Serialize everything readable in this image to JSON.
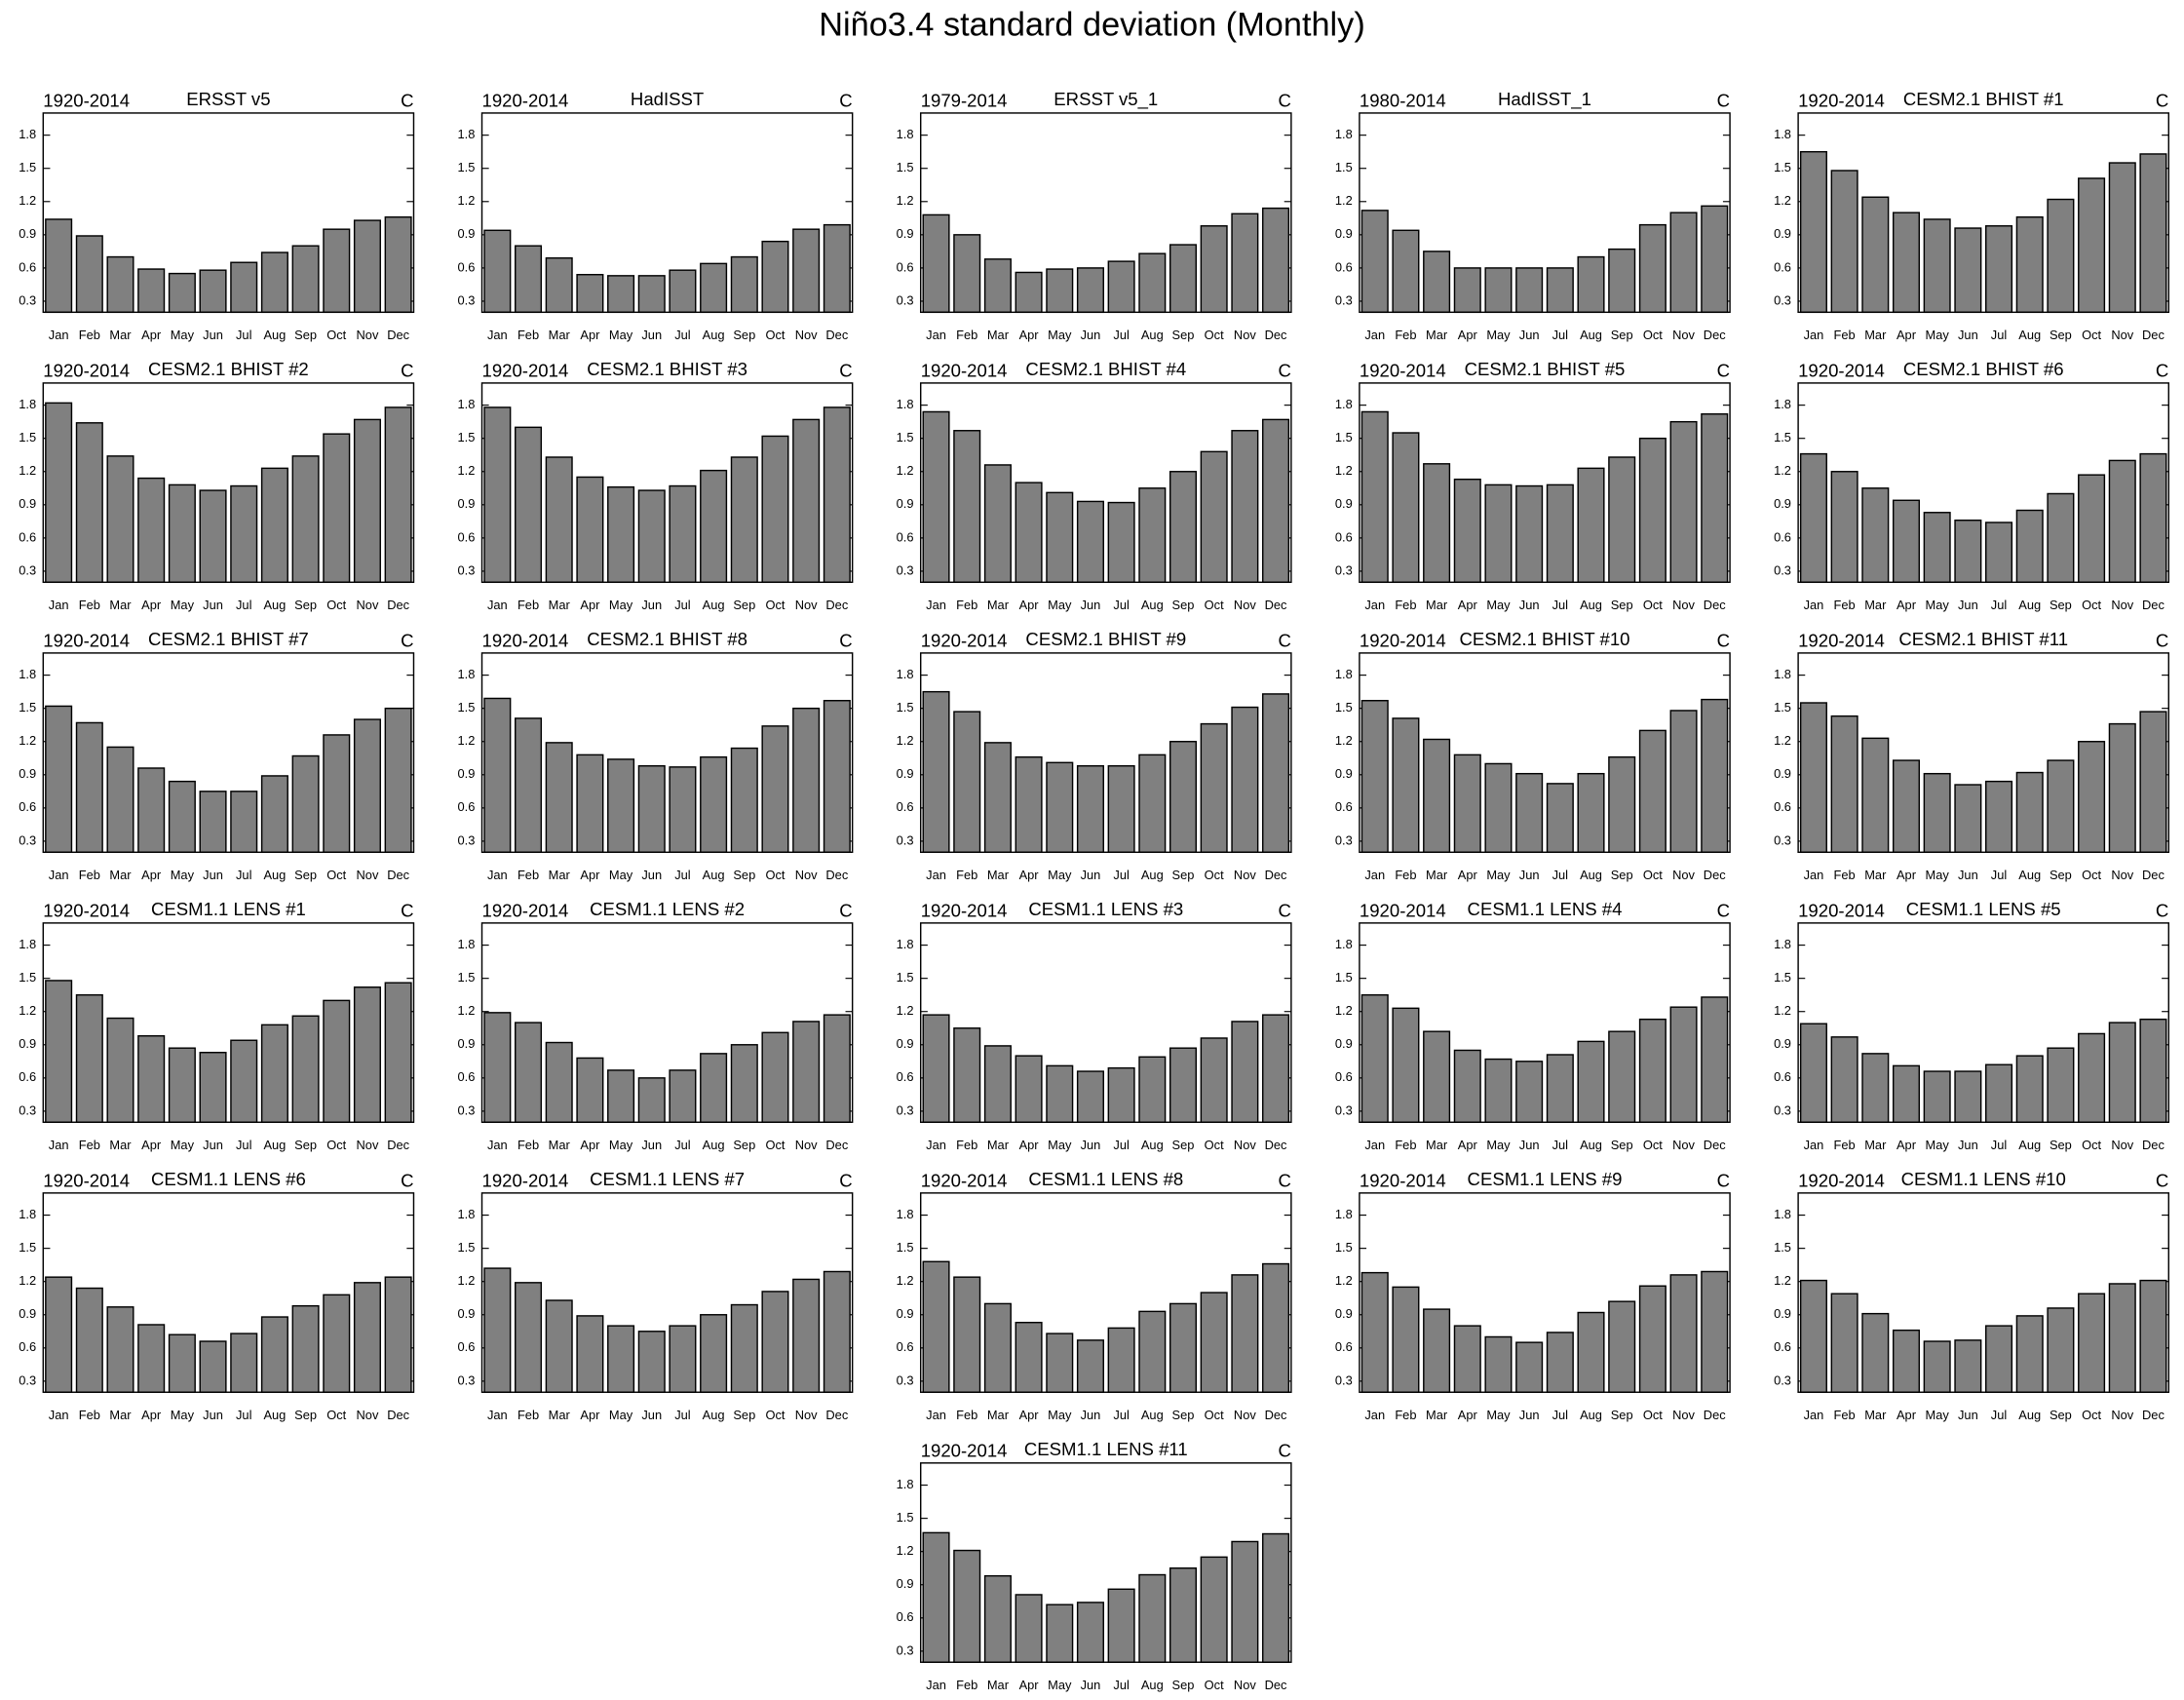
{
  "title": "Niño3.4 standard deviation (Monthly)",
  "chart_data": [
    {
      "type": "bar",
      "title": "ERSST v5",
      "left_label": "1920-2014",
      "right_label": "C",
      "categories": [
        "Jan",
        "Feb",
        "Mar",
        "Apr",
        "May",
        "Jun",
        "Jul",
        "Aug",
        "Sep",
        "Oct",
        "Nov",
        "Dec"
      ],
      "values": [
        1.04,
        0.89,
        0.7,
        0.59,
        0.55,
        0.58,
        0.65,
        0.74,
        0.8,
        0.95,
        1.03,
        1.06
      ],
      "color": "#808080",
      "ylim": [
        0.2,
        2.0
      ],
      "yticks": [
        0.3,
        0.6,
        0.9,
        1.2,
        1.5,
        1.8
      ]
    },
    {
      "type": "bar",
      "title": "HadISST",
      "left_label": "1920-2014",
      "right_label": "C",
      "categories": [
        "Jan",
        "Feb",
        "Mar",
        "Apr",
        "May",
        "Jun",
        "Jul",
        "Aug",
        "Sep",
        "Oct",
        "Nov",
        "Dec"
      ],
      "values": [
        0.94,
        0.8,
        0.69,
        0.54,
        0.53,
        0.53,
        0.58,
        0.64,
        0.7,
        0.84,
        0.95,
        0.99
      ],
      "color": "#808080",
      "ylim": [
        0.2,
        2.0
      ],
      "yticks": [
        0.3,
        0.6,
        0.9,
        1.2,
        1.5,
        1.8
      ]
    },
    {
      "type": "bar",
      "title": "ERSST v5_1",
      "left_label": "1979-2014",
      "right_label": "C",
      "categories": [
        "Jan",
        "Feb",
        "Mar",
        "Apr",
        "May",
        "Jun",
        "Jul",
        "Aug",
        "Sep",
        "Oct",
        "Nov",
        "Dec"
      ],
      "values": [
        1.08,
        0.9,
        0.68,
        0.56,
        0.59,
        0.6,
        0.66,
        0.73,
        0.81,
        0.98,
        1.09,
        1.14
      ],
      "color": "#808080",
      "ylim": [
        0.2,
        2.0
      ],
      "yticks": [
        0.3,
        0.6,
        0.9,
        1.2,
        1.5,
        1.8
      ]
    },
    {
      "type": "bar",
      "title": "HadISST_1",
      "left_label": "1980-2014",
      "right_label": "C",
      "categories": [
        "Jan",
        "Feb",
        "Mar",
        "Apr",
        "May",
        "Jun",
        "Jul",
        "Aug",
        "Sep",
        "Oct",
        "Nov",
        "Dec"
      ],
      "values": [
        1.12,
        0.94,
        0.75,
        0.6,
        0.6,
        0.6,
        0.6,
        0.7,
        0.77,
        0.99,
        1.1,
        1.16
      ],
      "color": "#808080",
      "ylim": [
        0.2,
        2.0
      ],
      "yticks": [
        0.3,
        0.6,
        0.9,
        1.2,
        1.5,
        1.8
      ]
    },
    {
      "type": "bar",
      "title": "CESM2.1 BHIST #1",
      "left_label": "1920-2014",
      "right_label": "C",
      "categories": [
        "Jan",
        "Feb",
        "Mar",
        "Apr",
        "May",
        "Jun",
        "Jul",
        "Aug",
        "Sep",
        "Oct",
        "Nov",
        "Dec"
      ],
      "values": [
        1.65,
        1.48,
        1.24,
        1.1,
        1.04,
        0.96,
        0.98,
        1.06,
        1.22,
        1.41,
        1.55,
        1.63
      ],
      "color": "#808080",
      "ylim": [
        0.2,
        2.0
      ],
      "yticks": [
        0.3,
        0.6,
        0.9,
        1.2,
        1.5,
        1.8
      ]
    },
    {
      "type": "bar",
      "title": "CESM2.1 BHIST #2",
      "left_label": "1920-2014",
      "right_label": "C",
      "categories": [
        "Jan",
        "Feb",
        "Mar",
        "Apr",
        "May",
        "Jun",
        "Jul",
        "Aug",
        "Sep",
        "Oct",
        "Nov",
        "Dec"
      ],
      "values": [
        1.82,
        1.64,
        1.34,
        1.14,
        1.08,
        1.03,
        1.07,
        1.23,
        1.34,
        1.54,
        1.67,
        1.78
      ],
      "color": "#808080",
      "ylim": [
        0.2,
        2.0
      ],
      "yticks": [
        0.3,
        0.6,
        0.9,
        1.2,
        1.5,
        1.8
      ]
    },
    {
      "type": "bar",
      "title": "CESM2.1 BHIST #3",
      "left_label": "1920-2014",
      "right_label": "C",
      "categories": [
        "Jan",
        "Feb",
        "Mar",
        "Apr",
        "May",
        "Jun",
        "Jul",
        "Aug",
        "Sep",
        "Oct",
        "Nov",
        "Dec"
      ],
      "values": [
        1.78,
        1.6,
        1.33,
        1.15,
        1.06,
        1.03,
        1.07,
        1.21,
        1.33,
        1.52,
        1.67,
        1.78
      ],
      "color": "#808080",
      "ylim": [
        0.2,
        2.0
      ],
      "yticks": [
        0.3,
        0.6,
        0.9,
        1.2,
        1.5,
        1.8
      ]
    },
    {
      "type": "bar",
      "title": "CESM2.1 BHIST #4",
      "left_label": "1920-2014",
      "right_label": "C",
      "categories": [
        "Jan",
        "Feb",
        "Mar",
        "Apr",
        "May",
        "Jun",
        "Jul",
        "Aug",
        "Sep",
        "Oct",
        "Nov",
        "Dec"
      ],
      "values": [
        1.74,
        1.57,
        1.26,
        1.1,
        1.01,
        0.93,
        0.92,
        1.05,
        1.2,
        1.38,
        1.57,
        1.67
      ],
      "color": "#808080",
      "ylim": [
        0.2,
        2.0
      ],
      "yticks": [
        0.3,
        0.6,
        0.9,
        1.2,
        1.5,
        1.8
      ]
    },
    {
      "type": "bar",
      "title": "CESM2.1 BHIST #5",
      "left_label": "1920-2014",
      "right_label": "C",
      "categories": [
        "Jan",
        "Feb",
        "Mar",
        "Apr",
        "May",
        "Jun",
        "Jul",
        "Aug",
        "Sep",
        "Oct",
        "Nov",
        "Dec"
      ],
      "values": [
        1.74,
        1.55,
        1.27,
        1.13,
        1.08,
        1.07,
        1.08,
        1.23,
        1.33,
        1.5,
        1.65,
        1.72
      ],
      "color": "#808080",
      "ylim": [
        0.2,
        2.0
      ],
      "yticks": [
        0.3,
        0.6,
        0.9,
        1.2,
        1.5,
        1.8
      ]
    },
    {
      "type": "bar",
      "title": "CESM2.1 BHIST #6",
      "left_label": "1920-2014",
      "right_label": "C",
      "categories": [
        "Jan",
        "Feb",
        "Mar",
        "Apr",
        "May",
        "Jun",
        "Jul",
        "Aug",
        "Sep",
        "Oct",
        "Nov",
        "Dec"
      ],
      "values": [
        1.36,
        1.2,
        1.05,
        0.94,
        0.83,
        0.76,
        0.74,
        0.85,
        1.0,
        1.17,
        1.3,
        1.36
      ],
      "color": "#808080",
      "ylim": [
        0.2,
        2.0
      ],
      "yticks": [
        0.3,
        0.6,
        0.9,
        1.2,
        1.5,
        1.8
      ]
    },
    {
      "type": "bar",
      "title": "CESM2.1 BHIST #7",
      "left_label": "1920-2014",
      "right_label": "C",
      "categories": [
        "Jan",
        "Feb",
        "Mar",
        "Apr",
        "May",
        "Jun",
        "Jul",
        "Aug",
        "Sep",
        "Oct",
        "Nov",
        "Dec"
      ],
      "values": [
        1.52,
        1.37,
        1.15,
        0.96,
        0.84,
        0.75,
        0.75,
        0.89,
        1.07,
        1.26,
        1.4,
        1.5
      ],
      "color": "#808080",
      "ylim": [
        0.2,
        2.0
      ],
      "yticks": [
        0.3,
        0.6,
        0.9,
        1.2,
        1.5,
        1.8
      ]
    },
    {
      "type": "bar",
      "title": "CESM2.1 BHIST #8",
      "left_label": "1920-2014",
      "right_label": "C",
      "categories": [
        "Jan",
        "Feb",
        "Mar",
        "Apr",
        "May",
        "Jun",
        "Jul",
        "Aug",
        "Sep",
        "Oct",
        "Nov",
        "Dec"
      ],
      "values": [
        1.59,
        1.41,
        1.19,
        1.08,
        1.04,
        0.98,
        0.97,
        1.06,
        1.14,
        1.34,
        1.5,
        1.57
      ],
      "color": "#808080",
      "ylim": [
        0.2,
        2.0
      ],
      "yticks": [
        0.3,
        0.6,
        0.9,
        1.2,
        1.5,
        1.8
      ]
    },
    {
      "type": "bar",
      "title": "CESM2.1 BHIST #9",
      "left_label": "1920-2014",
      "right_label": "C",
      "categories": [
        "Jan",
        "Feb",
        "Mar",
        "Apr",
        "May",
        "Jun",
        "Jul",
        "Aug",
        "Sep",
        "Oct",
        "Nov",
        "Dec"
      ],
      "values": [
        1.65,
        1.47,
        1.19,
        1.06,
        1.01,
        0.98,
        0.98,
        1.08,
        1.2,
        1.36,
        1.51,
        1.63
      ],
      "color": "#808080",
      "ylim": [
        0.2,
        2.0
      ],
      "yticks": [
        0.3,
        0.6,
        0.9,
        1.2,
        1.5,
        1.8
      ]
    },
    {
      "type": "bar",
      "title": "CESM2.1 BHIST #10",
      "left_label": "1920-2014",
      "right_label": "C",
      "categories": [
        "Jan",
        "Feb",
        "Mar",
        "Apr",
        "May",
        "Jun",
        "Jul",
        "Aug",
        "Sep",
        "Oct",
        "Nov",
        "Dec"
      ],
      "values": [
        1.57,
        1.41,
        1.22,
        1.08,
        1.0,
        0.91,
        0.82,
        0.91,
        1.06,
        1.3,
        1.48,
        1.58
      ],
      "color": "#808080",
      "ylim": [
        0.2,
        2.0
      ],
      "yticks": [
        0.3,
        0.6,
        0.9,
        1.2,
        1.5,
        1.8
      ]
    },
    {
      "type": "bar",
      "title": "CESM2.1 BHIST #11",
      "left_label": "1920-2014",
      "right_label": "C",
      "categories": [
        "Jan",
        "Feb",
        "Mar",
        "Apr",
        "May",
        "Jun",
        "Jul",
        "Aug",
        "Sep",
        "Oct",
        "Nov",
        "Dec"
      ],
      "values": [
        1.55,
        1.43,
        1.23,
        1.03,
        0.91,
        0.81,
        0.84,
        0.92,
        1.03,
        1.2,
        1.36,
        1.47
      ],
      "color": "#808080",
      "ylim": [
        0.2,
        2.0
      ],
      "yticks": [
        0.3,
        0.6,
        0.9,
        1.2,
        1.5,
        1.8
      ]
    },
    {
      "type": "bar",
      "title": "CESM1.1 LENS #1",
      "left_label": "1920-2014",
      "right_label": "C",
      "categories": [
        "Jan",
        "Feb",
        "Mar",
        "Apr",
        "May",
        "Jun",
        "Jul",
        "Aug",
        "Sep",
        "Oct",
        "Nov",
        "Dec"
      ],
      "values": [
        1.48,
        1.35,
        1.14,
        0.98,
        0.87,
        0.83,
        0.94,
        1.08,
        1.16,
        1.3,
        1.42,
        1.46
      ],
      "color": "#808080",
      "ylim": [
        0.2,
        2.0
      ],
      "yticks": [
        0.3,
        0.6,
        0.9,
        1.2,
        1.5,
        1.8
      ]
    },
    {
      "type": "bar",
      "title": "CESM1.1 LENS #2",
      "left_label": "1920-2014",
      "right_label": "C",
      "categories": [
        "Jan",
        "Feb",
        "Mar",
        "Apr",
        "May",
        "Jun",
        "Jul",
        "Aug",
        "Sep",
        "Oct",
        "Nov",
        "Dec"
      ],
      "values": [
        1.19,
        1.1,
        0.92,
        0.78,
        0.67,
        0.6,
        0.67,
        0.82,
        0.9,
        1.01,
        1.11,
        1.17
      ],
      "color": "#808080",
      "ylim": [
        0.2,
        2.0
      ],
      "yticks": [
        0.3,
        0.6,
        0.9,
        1.2,
        1.5,
        1.8
      ]
    },
    {
      "type": "bar",
      "title": "CESM1.1 LENS #3",
      "left_label": "1920-2014",
      "right_label": "C",
      "categories": [
        "Jan",
        "Feb",
        "Mar",
        "Apr",
        "May",
        "Jun",
        "Jul",
        "Aug",
        "Sep",
        "Oct",
        "Nov",
        "Dec"
      ],
      "values": [
        1.17,
        1.05,
        0.89,
        0.8,
        0.71,
        0.66,
        0.69,
        0.79,
        0.87,
        0.96,
        1.11,
        1.17
      ],
      "color": "#808080",
      "ylim": [
        0.2,
        2.0
      ],
      "yticks": [
        0.3,
        0.6,
        0.9,
        1.2,
        1.5,
        1.8
      ]
    },
    {
      "type": "bar",
      "title": "CESM1.1 LENS #4",
      "left_label": "1920-2014",
      "right_label": "C",
      "categories": [
        "Jan",
        "Feb",
        "Mar",
        "Apr",
        "May",
        "Jun",
        "Jul",
        "Aug",
        "Sep",
        "Oct",
        "Nov",
        "Dec"
      ],
      "values": [
        1.35,
        1.23,
        1.02,
        0.85,
        0.77,
        0.75,
        0.81,
        0.93,
        1.02,
        1.13,
        1.24,
        1.33
      ],
      "color": "#808080",
      "ylim": [
        0.2,
        2.0
      ],
      "yticks": [
        0.3,
        0.6,
        0.9,
        1.2,
        1.5,
        1.8
      ]
    },
    {
      "type": "bar",
      "title": "CESM1.1 LENS #5",
      "left_label": "1920-2014",
      "right_label": "C",
      "categories": [
        "Jan",
        "Feb",
        "Mar",
        "Apr",
        "May",
        "Jun",
        "Jul",
        "Aug",
        "Sep",
        "Oct",
        "Nov",
        "Dec"
      ],
      "values": [
        1.09,
        0.97,
        0.82,
        0.71,
        0.66,
        0.66,
        0.72,
        0.8,
        0.87,
        1.0,
        1.1,
        1.13
      ],
      "color": "#808080",
      "ylim": [
        0.2,
        2.0
      ],
      "yticks": [
        0.3,
        0.6,
        0.9,
        1.2,
        1.5,
        1.8
      ]
    },
    {
      "type": "bar",
      "title": "CESM1.1 LENS #6",
      "left_label": "1920-2014",
      "right_label": "C",
      "categories": [
        "Jan",
        "Feb",
        "Mar",
        "Apr",
        "May",
        "Jun",
        "Jul",
        "Aug",
        "Sep",
        "Oct",
        "Nov",
        "Dec"
      ],
      "values": [
        1.24,
        1.14,
        0.97,
        0.81,
        0.72,
        0.66,
        0.73,
        0.88,
        0.98,
        1.08,
        1.19,
        1.24
      ],
      "color": "#808080",
      "ylim": [
        0.2,
        2.0
      ],
      "yticks": [
        0.3,
        0.6,
        0.9,
        1.2,
        1.5,
        1.8
      ]
    },
    {
      "type": "bar",
      "title": "CESM1.1 LENS #7",
      "left_label": "1920-2014",
      "right_label": "C",
      "categories": [
        "Jan",
        "Feb",
        "Mar",
        "Apr",
        "May",
        "Jun",
        "Jul",
        "Aug",
        "Sep",
        "Oct",
        "Nov",
        "Dec"
      ],
      "values": [
        1.32,
        1.19,
        1.03,
        0.89,
        0.8,
        0.75,
        0.8,
        0.9,
        0.99,
        1.11,
        1.22,
        1.29
      ],
      "color": "#808080",
      "ylim": [
        0.2,
        2.0
      ],
      "yticks": [
        0.3,
        0.6,
        0.9,
        1.2,
        1.5,
        1.8
      ]
    },
    {
      "type": "bar",
      "title": "CESM1.1 LENS #8",
      "left_label": "1920-2014",
      "right_label": "C",
      "categories": [
        "Jan",
        "Feb",
        "Mar",
        "Apr",
        "May",
        "Jun",
        "Jul",
        "Aug",
        "Sep",
        "Oct",
        "Nov",
        "Dec"
      ],
      "values": [
        1.38,
        1.24,
        1.0,
        0.83,
        0.73,
        0.67,
        0.78,
        0.93,
        1.0,
        1.1,
        1.26,
        1.36
      ],
      "color": "#808080",
      "ylim": [
        0.2,
        2.0
      ],
      "yticks": [
        0.3,
        0.6,
        0.9,
        1.2,
        1.5,
        1.8
      ]
    },
    {
      "type": "bar",
      "title": "CESM1.1 LENS #9",
      "left_label": "1920-2014",
      "right_label": "C",
      "categories": [
        "Jan",
        "Feb",
        "Mar",
        "Apr",
        "May",
        "Jun",
        "Jul",
        "Aug",
        "Sep",
        "Oct",
        "Nov",
        "Dec"
      ],
      "values": [
        1.28,
        1.15,
        0.95,
        0.8,
        0.7,
        0.65,
        0.74,
        0.92,
        1.02,
        1.16,
        1.26,
        1.29
      ],
      "color": "#808080",
      "ylim": [
        0.2,
        2.0
      ],
      "yticks": [
        0.3,
        0.6,
        0.9,
        1.2,
        1.5,
        1.8
      ]
    },
    {
      "type": "bar",
      "title": "CESM1.1 LENS #10",
      "left_label": "1920-2014",
      "right_label": "C",
      "categories": [
        "Jan",
        "Feb",
        "Mar",
        "Apr",
        "May",
        "Jun",
        "Jul",
        "Aug",
        "Sep",
        "Oct",
        "Nov",
        "Dec"
      ],
      "values": [
        1.21,
        1.09,
        0.91,
        0.76,
        0.66,
        0.67,
        0.8,
        0.89,
        0.96,
        1.09,
        1.18,
        1.21
      ],
      "color": "#808080",
      "ylim": [
        0.2,
        2.0
      ],
      "yticks": [
        0.3,
        0.6,
        0.9,
        1.2,
        1.5,
        1.8
      ]
    },
    {
      "type": "bar",
      "title": "CESM1.1 LENS #11",
      "left_label": "1920-2014",
      "right_label": "C",
      "categories": [
        "Jan",
        "Feb",
        "Mar",
        "Apr",
        "May",
        "Jun",
        "Jul",
        "Aug",
        "Sep",
        "Oct",
        "Nov",
        "Dec"
      ],
      "values": [
        1.37,
        1.21,
        0.98,
        0.81,
        0.72,
        0.74,
        0.86,
        0.99,
        1.05,
        1.15,
        1.29,
        1.36
      ],
      "color": "#808080",
      "ylim": [
        0.2,
        2.0
      ],
      "yticks": [
        0.3,
        0.6,
        0.9,
        1.2,
        1.5,
        1.8
      ]
    }
  ]
}
